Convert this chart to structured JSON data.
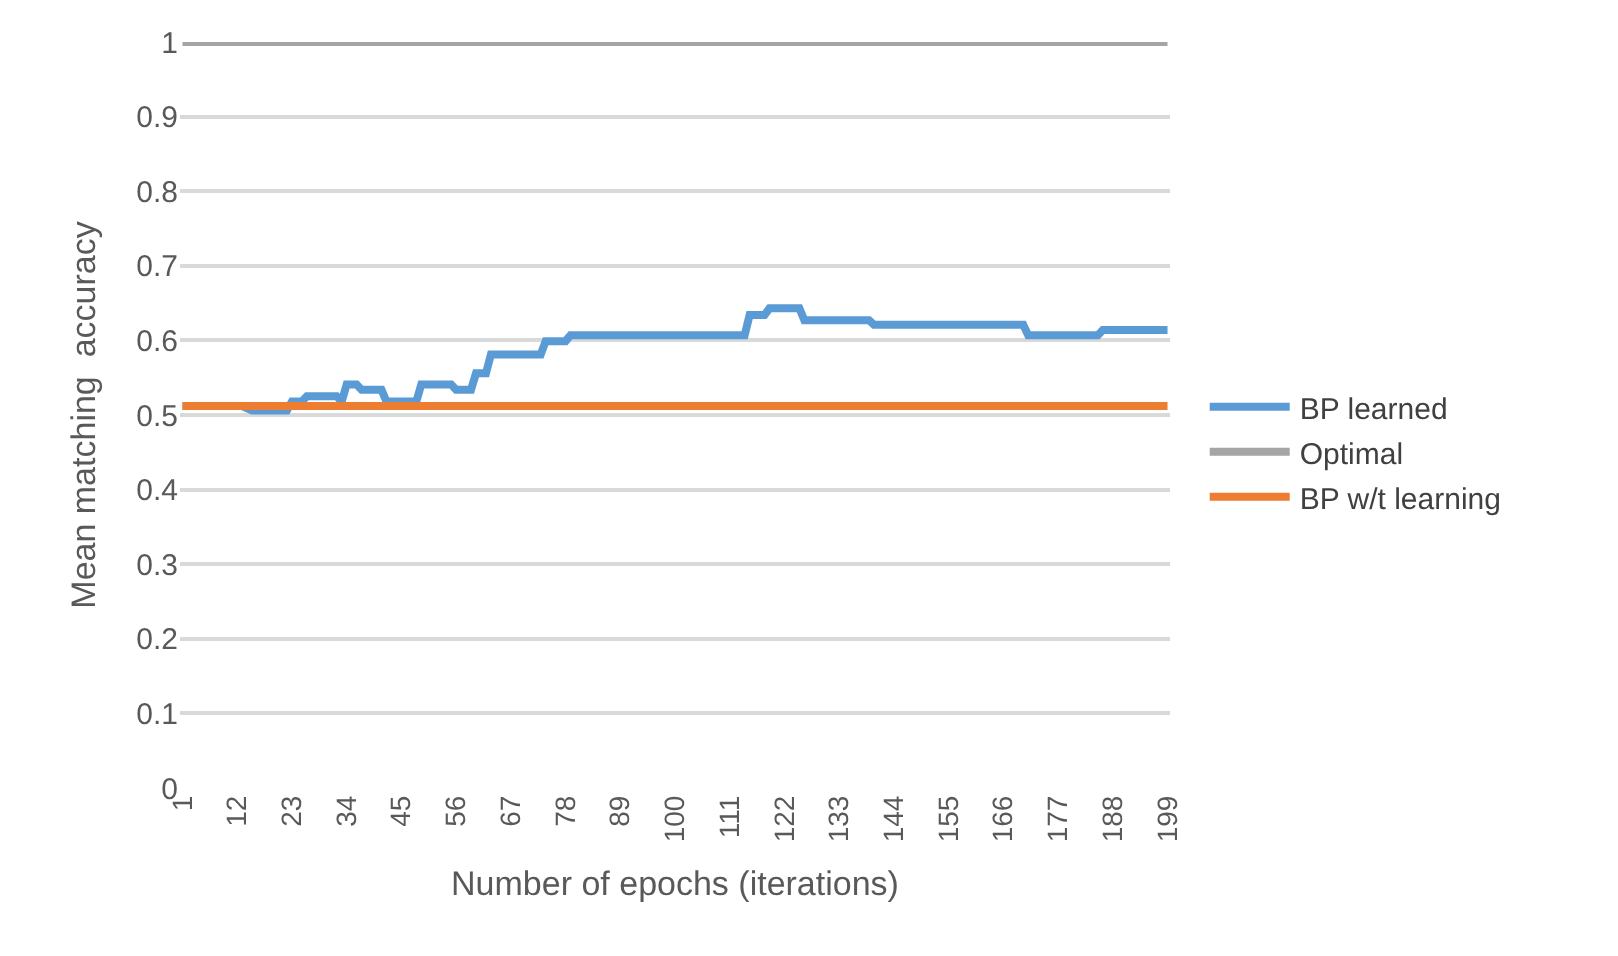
{
  "chart_data": {
    "type": "line",
    "xlabel": "Number of epochs (iterations)",
    "ylabel": "Mean matching  accuracy",
    "xlim": [
      0.5,
      199.5
    ],
    "xticks": [
      1,
      12,
      23,
      34,
      45,
      56,
      67,
      78,
      89,
      100,
      111,
      122,
      133,
      144,
      155,
      166,
      177,
      188,
      199
    ],
    "ylim": [
      0,
      1
    ],
    "yticks": [
      0,
      0.1,
      0.2,
      0.3,
      0.4,
      0.5,
      0.6,
      0.7,
      0.8,
      0.9,
      1
    ],
    "grid": "y",
    "legend": "right",
    "marker": "none",
    "line_style": "solid",
    "series": [
      {
        "name": "BP learned",
        "color": "#5b9bd5",
        "x": [
          1,
          13,
          15,
          22,
          23,
          25,
          26,
          32,
          33,
          34,
          36,
          37,
          41,
          42,
          48,
          49,
          55,
          56,
          59,
          60,
          62,
          63,
          73,
          74,
          78,
          79,
          114,
          115,
          118,
          119,
          125,
          126,
          139,
          140,
          170,
          171,
          185,
          186,
          199
        ],
        "values": [
          0.512,
          0.512,
          0.506,
          0.506,
          0.518,
          0.518,
          0.525,
          0.525,
          0.518,
          0.541,
          0.541,
          0.534,
          0.534,
          0.518,
          0.518,
          0.541,
          0.541,
          0.534,
          0.534,
          0.556,
          0.556,
          0.581,
          0.581,
          0.599,
          0.599,
          0.607,
          0.607,
          0.634,
          0.634,
          0.643,
          0.643,
          0.627,
          0.627,
          0.621,
          0.621,
          0.607,
          0.607,
          0.614,
          0.614
        ]
      },
      {
        "name": "Optimal",
        "color": "#a5a5a5",
        "x": [
          1,
          199
        ],
        "values": [
          1,
          1
        ]
      },
      {
        "name": "BP w/t learning",
        "color": "#ed7d31",
        "x": [
          1,
          199
        ],
        "values": [
          0.512,
          0.512
        ]
      }
    ]
  }
}
